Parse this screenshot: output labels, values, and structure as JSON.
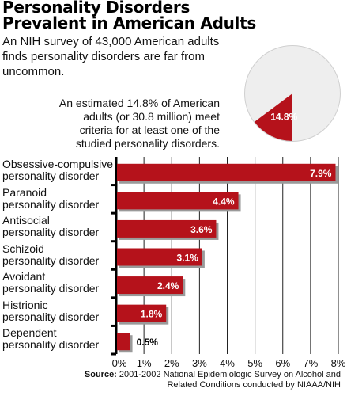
{
  "title": {
    "line1": "Personality Disorders",
    "line2": "Prevalent in American Adults"
  },
  "intro": "An NIH survey of 43,000 American adults finds personality disorders are far from uncommon.",
  "estimate": "An estimated 14.8% of American adults (or 30.8 million) meet criteria for at least one of the studied personality disorders.",
  "pie": {
    "value": 14.8,
    "label": "14.8%",
    "slice_color": "#b5121b",
    "rest_color": "#eeeeee"
  },
  "source": {
    "label": "Source:",
    "text": "2001-2002 National Epidemiologic Survey on Alcohol and Related Conditions conducted by NIAAA/NIH"
  },
  "chart_data": {
    "type": "bar",
    "orientation": "horizontal",
    "categories": [
      "Obsessive-compulsive personality disorder",
      "Paranoid personality disorder",
      "Antisocial personality disorder",
      "Schizoid personality disorder",
      "Avoidant personality disorder",
      "Histrionic personality disorder",
      "Dependent personality disorder"
    ],
    "category_lines": [
      [
        "Obsessive-compulsive",
        "personality disorder"
      ],
      [
        "Paranoid",
        "personality disorder"
      ],
      [
        "Antisocial",
        "personality disorder"
      ],
      [
        "Schizoid",
        "personality disorder"
      ],
      [
        "Avoidant",
        "personality disorder"
      ],
      [
        "Histrionic",
        "personality disorder"
      ],
      [
        "Dependent",
        "personality disorder"
      ]
    ],
    "values": [
      7.9,
      4.4,
      3.6,
      3.1,
      2.4,
      1.8,
      0.5
    ],
    "value_labels": [
      "7.9%",
      "4.4%",
      "3.6%",
      "3.1%",
      "2.4%",
      "1.8%",
      "0.5%"
    ],
    "xlim": [
      0,
      8
    ],
    "x_ticks": [
      "0%",
      "1%",
      "2%",
      "3%",
      "4%",
      "5%",
      "6%",
      "7%",
      "8%"
    ],
    "grid": true,
    "bar_color": "#b5121b"
  }
}
